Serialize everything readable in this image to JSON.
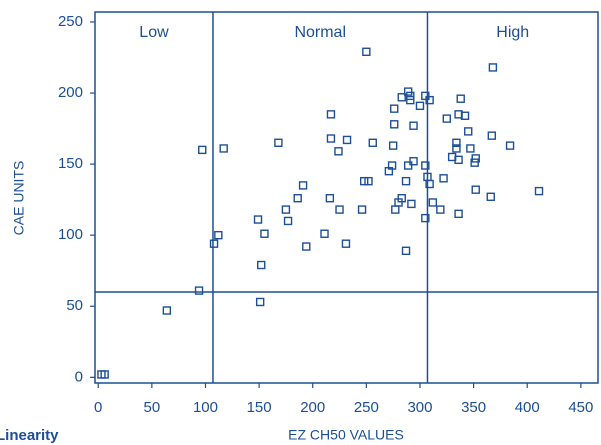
{
  "chart_data": {
    "type": "scatter",
    "title": "Linearity",
    "x_label": "EZ CH50 VALUES",
    "y_label": "CAE UNITS",
    "color": "#1c4f95",
    "xlim": [
      -3,
      466
    ],
    "ylim": [
      -4,
      257
    ],
    "xticks": [
      0,
      50,
      100,
      150,
      200,
      250,
      300,
      350,
      400,
      450
    ],
    "yticks": [
      0,
      50,
      100,
      150,
      200,
      250
    ],
    "x_thresholds": [
      107,
      307
    ],
    "y_thresholds": [
      60
    ],
    "regions": [
      "Low",
      "Normal",
      "High"
    ],
    "x": [
      3,
      6,
      64,
      94,
      97,
      108,
      112,
      117,
      149,
      155,
      152,
      151,
      168,
      175,
      177,
      186,
      191,
      194,
      211,
      216,
      217,
      217,
      224,
      225,
      232,
      231,
      246,
      248,
      252,
      250,
      256,
      271,
      274,
      276,
      276,
      275,
      277,
      280,
      283,
      283,
      287,
      289,
      289,
      291,
      291,
      292,
      294,
      294,
      287,
      300,
      305,
      309,
      305,
      307,
      309,
      305,
      312,
      319,
      322,
      325,
      330,
      334,
      334,
      336,
      338,
      336,
      342,
      345,
      347,
      336,
      352,
      351,
      352,
      366,
      367,
      368,
      384,
      411
    ],
    "y": [
      2,
      2,
      47,
      61,
      160,
      94,
      100,
      161,
      111,
      101,
      79,
      53,
      165,
      118,
      110,
      126,
      135,
      92,
      101,
      126,
      185,
      168,
      159,
      118,
      167,
      94,
      118,
      138,
      138,
      229,
      165,
      145,
      149,
      189,
      178,
      163,
      118,
      123,
      197,
      126,
      138,
      149,
      201,
      198,
      195,
      122,
      177,
      152,
      89,
      191,
      198,
      195,
      149,
      141,
      136,
      112,
      123,
      118,
      140,
      182,
      155,
      165,
      161,
      153,
      196,
      185,
      184,
      173,
      161,
      115,
      154,
      151,
      132,
      127,
      170,
      218,
      163,
      131
    ]
  }
}
